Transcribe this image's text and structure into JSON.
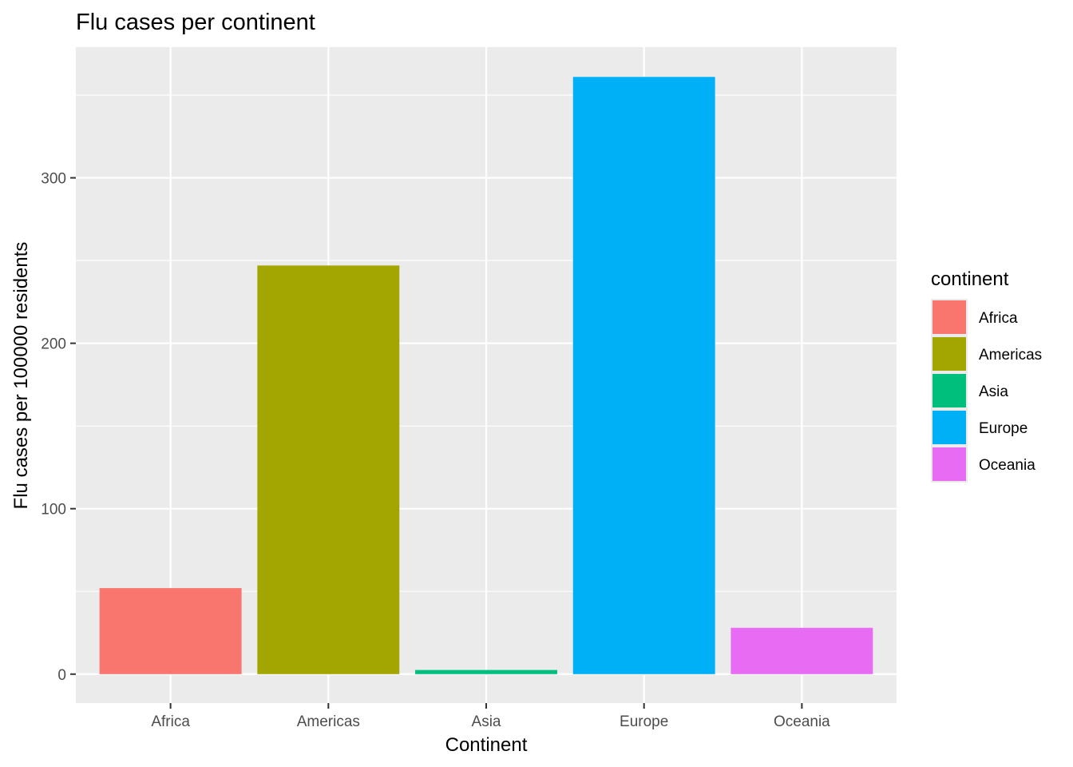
{
  "chart_data": {
    "type": "bar",
    "title": "Flu cases per continent",
    "xlabel": "Continent",
    "ylabel": "Flu cases per 100000 residents",
    "categories": [
      "Africa",
      "Americas",
      "Asia",
      "Europe",
      "Oceania"
    ],
    "values": [
      52,
      247,
      2.5,
      361,
      28
    ],
    "colors": [
      "#F8766D",
      "#A3A500",
      "#00BF7D",
      "#00B0F6",
      "#E76BF3"
    ],
    "ylim": [
      -17.5,
      379
    ],
    "yticks": [
      0,
      100,
      200,
      300
    ],
    "ytick_labels": [
      "0",
      "100",
      "200",
      "300"
    ],
    "grid": true,
    "panel_background": "#EBEBEB",
    "grid_color": "#FFFFFF",
    "legend": {
      "title": "continent",
      "placement": "right",
      "entries": [
        "Africa",
        "Americas",
        "Asia",
        "Europe",
        "Oceania"
      ]
    }
  }
}
